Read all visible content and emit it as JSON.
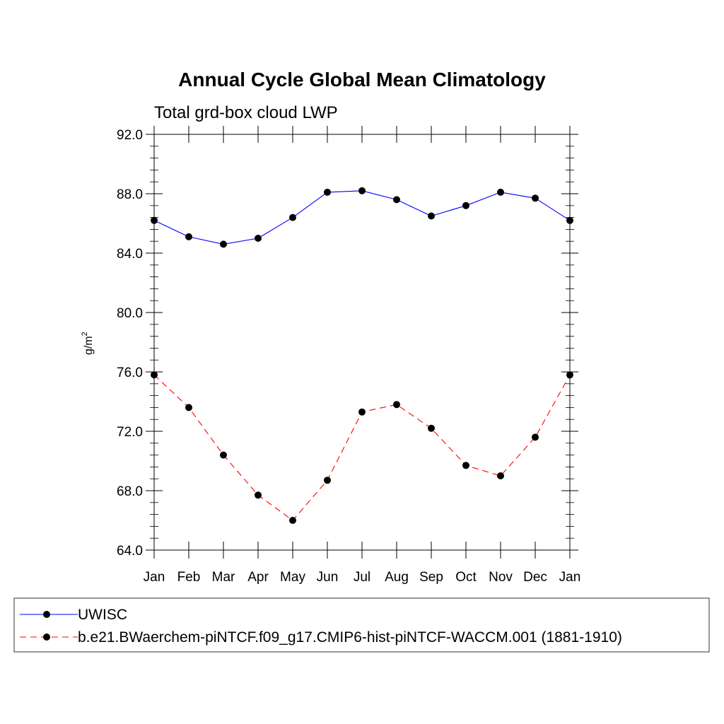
{
  "chart_data": {
    "type": "line",
    "title": "Annual Cycle Global Mean Climatology",
    "subtitle": "Total grd-box cloud LWP",
    "ylabel": "g/m",
    "ylabel_superscript": "2",
    "xlabel": "",
    "categories": [
      "Jan",
      "Feb",
      "Mar",
      "Apr",
      "May",
      "Jun",
      "Jul",
      "Aug",
      "Sep",
      "Oct",
      "Nov",
      "Dec",
      "Jan"
    ],
    "ylim": [
      64,
      92
    ],
    "yticks": [
      "64.0",
      "68.0",
      "72.0",
      "76.0",
      "80.0",
      "84.0",
      "88.0",
      "92.0"
    ],
    "grid": false,
    "legend_position": "bottom",
    "series": [
      {
        "name": "UWISC",
        "color": "#0000ff",
        "style": "solid",
        "values": [
          86.2,
          85.1,
          84.6,
          85.0,
          86.4,
          88.1,
          88.2,
          87.6,
          86.5,
          87.2,
          88.1,
          87.7,
          86.2
        ]
      },
      {
        "name": "b.e21.BWaerchem-piNTCF.f09_g17.CMIP6-hist-piNTCF-WACCM.001 (1881-1910)",
        "color": "#ff0000",
        "style": "dashed",
        "values": [
          75.8,
          73.6,
          70.4,
          67.7,
          66.0,
          68.7,
          73.3,
          73.8,
          72.2,
          69.7,
          69.0,
          71.6,
          75.8
        ]
      }
    ]
  }
}
